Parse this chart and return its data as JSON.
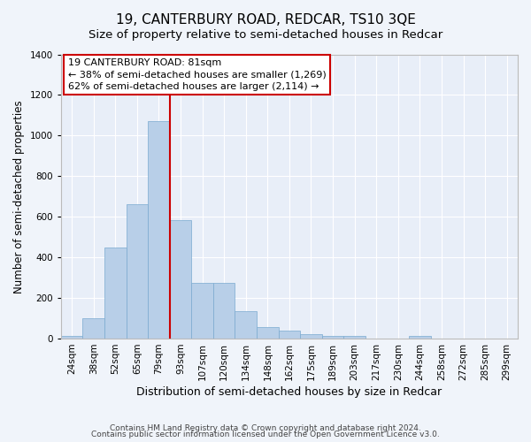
{
  "title": "19, CANTERBURY ROAD, REDCAR, TS10 3QE",
  "subtitle": "Size of property relative to semi-detached houses in Redcar",
  "xlabel": "Distribution of semi-detached houses by size in Redcar",
  "ylabel": "Number of semi-detached properties",
  "categories": [
    "24sqm",
    "38sqm",
    "52sqm",
    "65sqm",
    "79sqm",
    "93sqm",
    "107sqm",
    "120sqm",
    "134sqm",
    "148sqm",
    "162sqm",
    "175sqm",
    "189sqm",
    "203sqm",
    "217sqm",
    "230sqm",
    "244sqm",
    "258sqm",
    "272sqm",
    "285sqm",
    "299sqm"
  ],
  "values": [
    15,
    100,
    450,
    660,
    1070,
    585,
    275,
    275,
    135,
    55,
    38,
    20,
    15,
    15,
    0,
    0,
    15,
    0,
    0,
    0,
    0
  ],
  "bar_color": "#b8cfe8",
  "bar_edgecolor": "#7aaad0",
  "vline_x_index": 4,
  "vline_color": "#cc0000",
  "annotation_title": "19 CANTERBURY ROAD: 81sqm",
  "annotation_line1": "← 38% of semi-detached houses are smaller (1,269)",
  "annotation_line2": "62% of semi-detached houses are larger (2,114) →",
  "annotation_box_facecolor": "#ffffff",
  "annotation_box_edgecolor": "#cc0000",
  "ylim": [
    0,
    1400
  ],
  "yticks": [
    0,
    200,
    400,
    600,
    800,
    1000,
    1200,
    1400
  ],
  "background_color": "#f0f4fa",
  "plot_background": "#e8eef8",
  "title_fontsize": 11,
  "subtitle_fontsize": 9.5,
  "ylabel_fontsize": 8.5,
  "xlabel_fontsize": 9,
  "tick_fontsize": 7.5,
  "annotation_fontsize": 8,
  "footer_fontsize": 6.5,
  "footer1": "Contains HM Land Registry data © Crown copyright and database right 2024.",
  "footer2": "Contains public sector information licensed under the Open Government Licence v3.0."
}
